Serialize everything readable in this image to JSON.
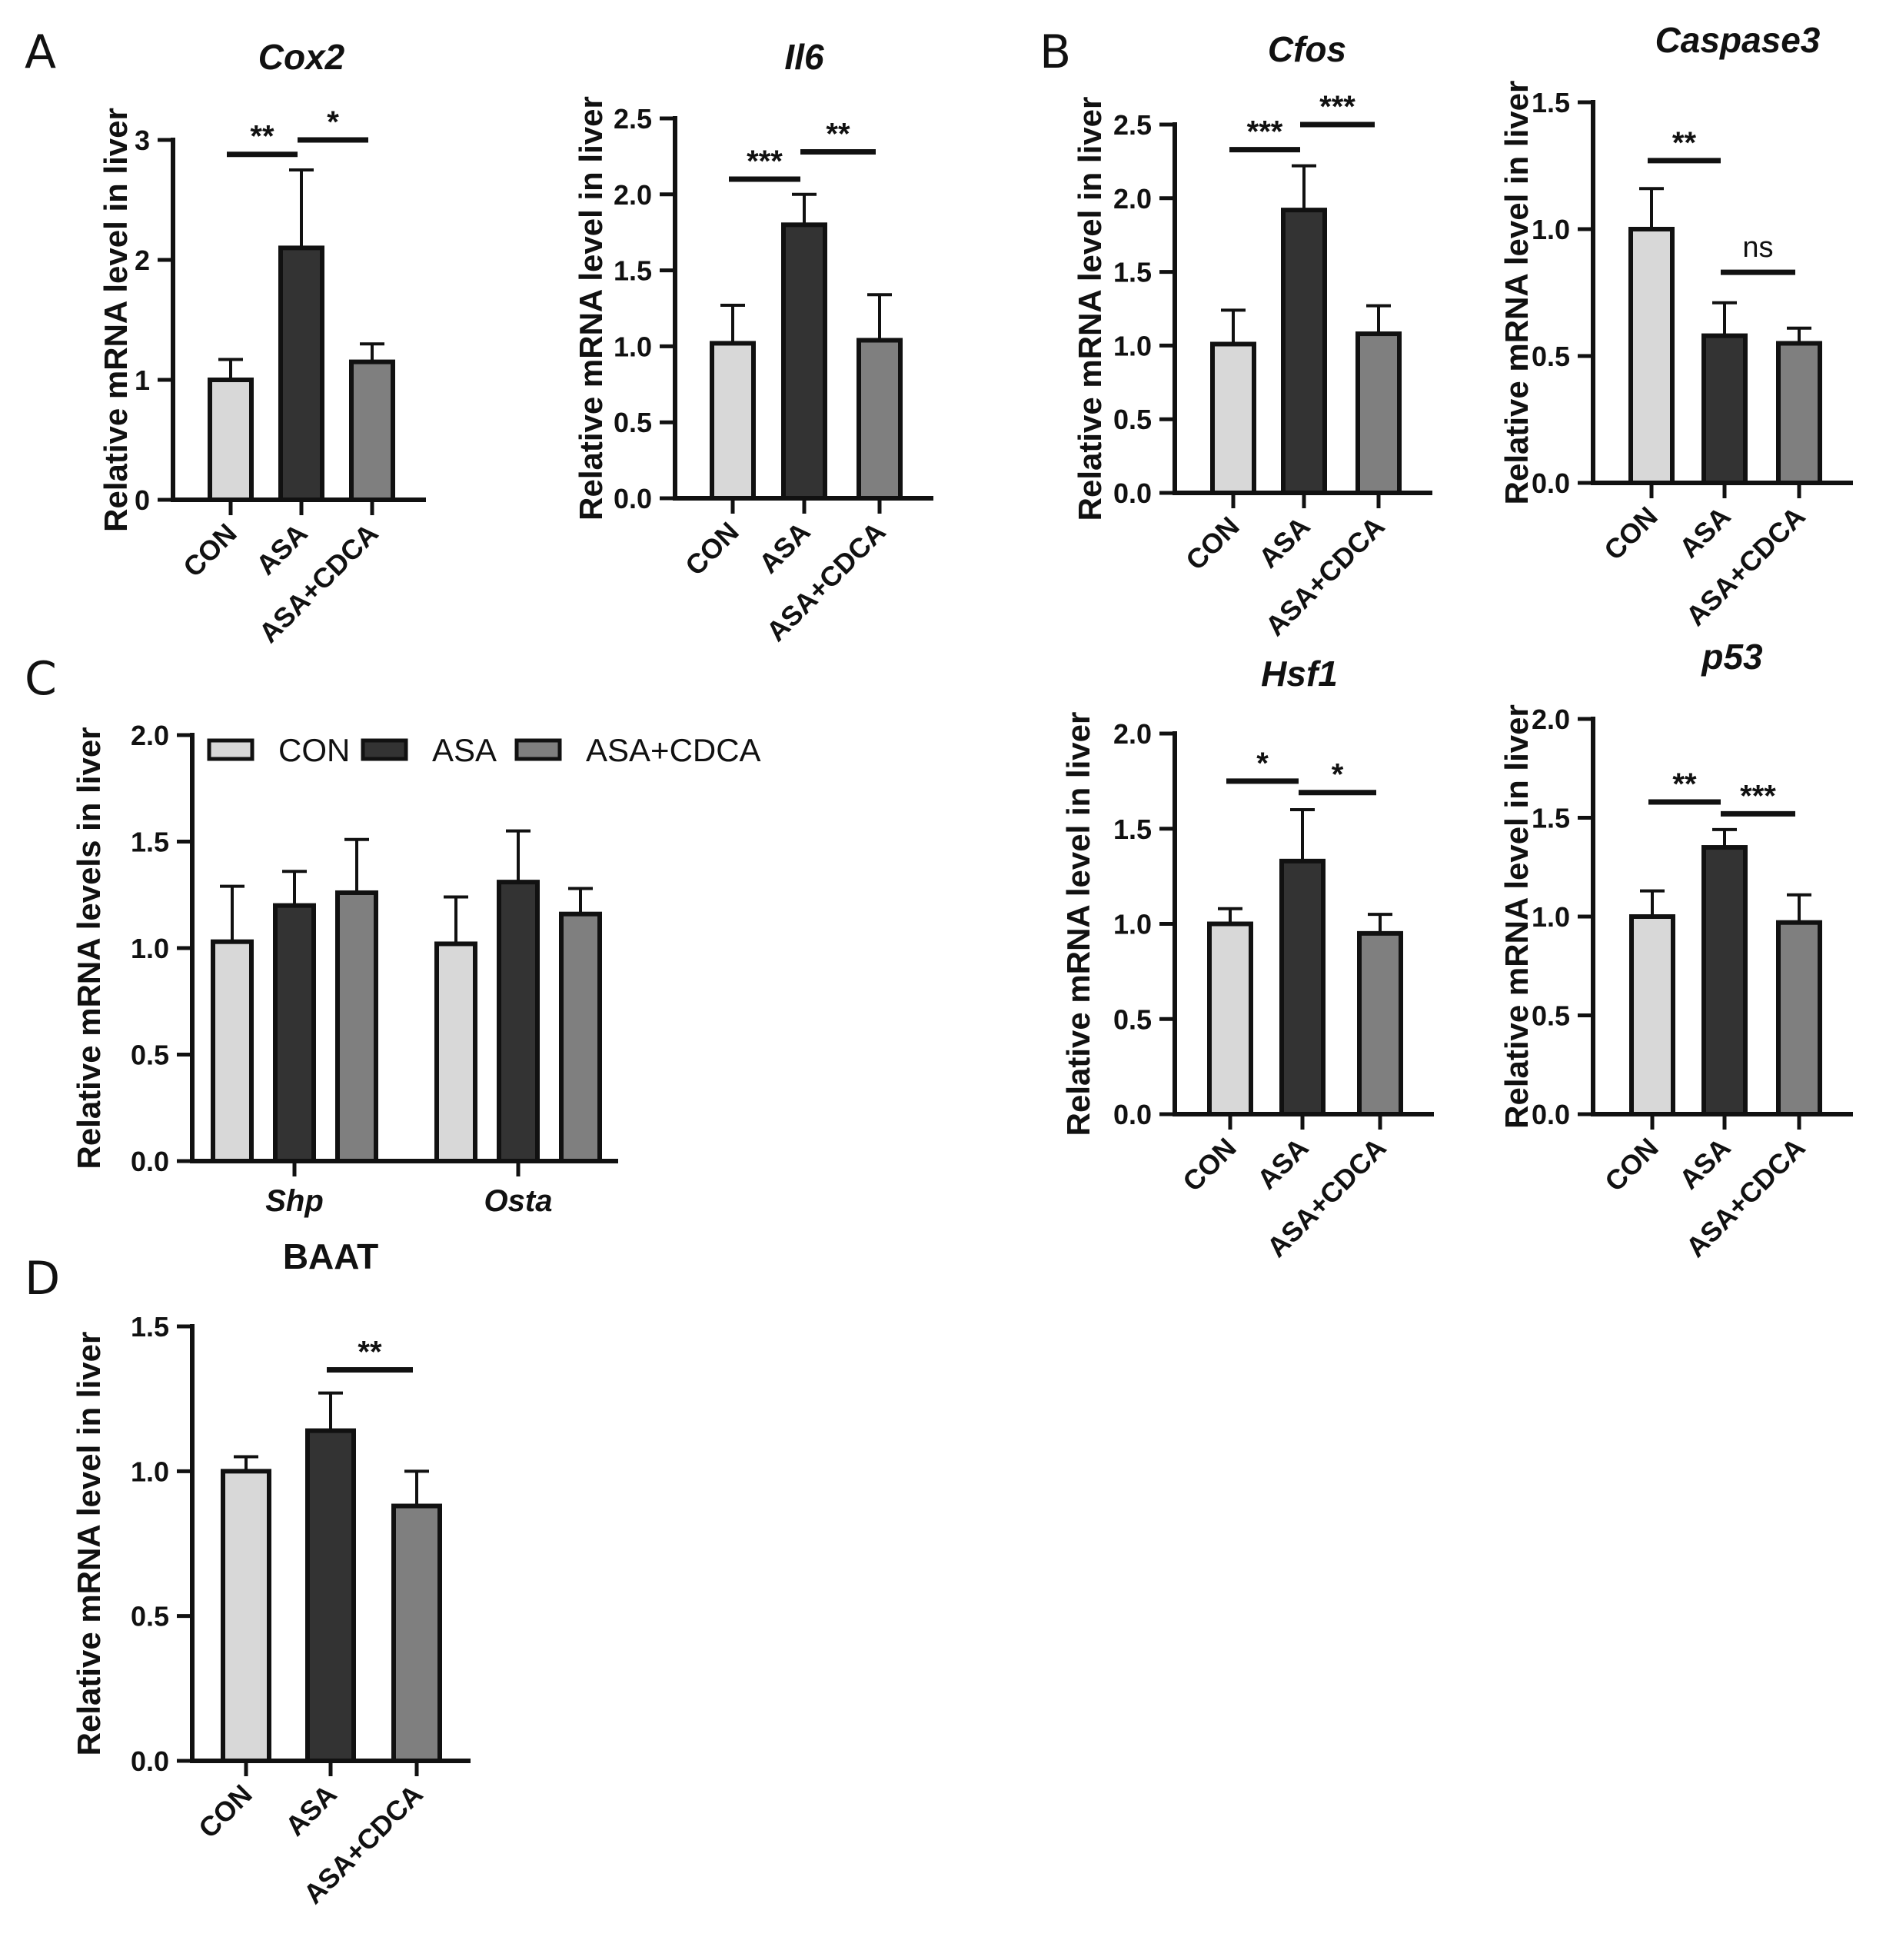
{
  "panel_labels": [
    "A",
    "B",
    "C",
    "D"
  ],
  "colors": {
    "CON": "#d8d8d8",
    "ASA": "#333333",
    "ASA+CDCA": "#7f7f7f",
    "axis": "#111111"
  },
  "chart_data": [
    {
      "id": "cox2",
      "panel": "A",
      "type": "bar",
      "title": "Cox2",
      "title_italic": true,
      "ylabel": "Relative mRNA level in liver",
      "categories": [
        "CON",
        "ASA",
        "ASA+CDCA"
      ],
      "values": [
        1.0,
        2.1,
        1.15
      ],
      "errors": [
        0.17,
        0.65,
        0.15
      ],
      "ylim": [
        0,
        3
      ],
      "yticks": [
        0,
        1,
        2,
        3
      ],
      "yticklabels": [
        "0",
        "1",
        "2",
        "3"
      ],
      "significance": [
        {
          "from": 0,
          "to": 1,
          "label": "**",
          "y": 2.88
        },
        {
          "from": 1,
          "to": 2,
          "label": "*",
          "y": 3.0
        }
      ]
    },
    {
      "id": "il6",
      "panel": "A",
      "type": "bar",
      "title": "Il6",
      "title_italic": true,
      "ylabel": "Relative mRNA level in liver",
      "categories": [
        "CON",
        "ASA",
        "ASA+CDCA"
      ],
      "values": [
        1.02,
        1.8,
        1.04
      ],
      "errors": [
        0.25,
        0.2,
        0.3
      ],
      "ylim": [
        0,
        2.5
      ],
      "yticks": [
        0,
        0.5,
        1.0,
        1.5,
        2.0,
        2.5
      ],
      "yticklabels": [
        "0.0",
        "0.5",
        "1.0",
        "1.5",
        "2.0",
        "2.5"
      ],
      "significance": [
        {
          "from": 0,
          "to": 1,
          "label": "***",
          "y": 2.1
        },
        {
          "from": 1,
          "to": 2,
          "label": "**",
          "y": 2.28
        }
      ]
    },
    {
      "id": "cfos",
      "panel": "B",
      "type": "bar",
      "title": "Cfos",
      "title_italic": true,
      "ylabel": "Relative mRNA level in liver",
      "categories": [
        "CON",
        "ASA",
        "ASA+CDCA"
      ],
      "values": [
        1.01,
        1.92,
        1.08
      ],
      "errors": [
        0.23,
        0.3,
        0.19
      ],
      "ylim": [
        0,
        2.5
      ],
      "yticks": [
        0,
        0.5,
        1.0,
        1.5,
        2.0,
        2.5
      ],
      "yticklabels": [
        "0.0",
        "0.5",
        "1.0",
        "1.5",
        "2.0",
        "2.5"
      ],
      "significance": [
        {
          "from": 0,
          "to": 1,
          "label": "***",
          "y": 2.33
        },
        {
          "from": 1,
          "to": 2,
          "label": "***",
          "y": 2.5
        }
      ]
    },
    {
      "id": "caspase3",
      "panel": "B",
      "type": "bar",
      "title": "Caspase3",
      "title_italic": true,
      "ylabel": "Relative mRNA level in liver",
      "categories": [
        "CON",
        "ASA",
        "ASA+CDCA"
      ],
      "values": [
        1.0,
        0.58,
        0.55
      ],
      "errors": [
        0.16,
        0.13,
        0.06
      ],
      "ylim": [
        0,
        1.5
      ],
      "yticks": [
        0,
        0.5,
        1.0,
        1.5
      ],
      "yticklabels": [
        "0.0",
        "0.5",
        "1.0",
        "1.5"
      ],
      "significance": [
        {
          "from": 0,
          "to": 1,
          "label": "**",
          "y": 1.27
        },
        {
          "from": 1,
          "to": 2,
          "label": "ns",
          "y": 0.83
        }
      ]
    },
    {
      "id": "hsf1",
      "panel": "B",
      "type": "bar",
      "title": "Hsf1",
      "title_italic": true,
      "ylabel": "Relative mRNA level in liver",
      "categories": [
        "CON",
        "ASA",
        "ASA+CDCA"
      ],
      "values": [
        1.0,
        1.33,
        0.95
      ],
      "errors": [
        0.08,
        0.27,
        0.1
      ],
      "ylim": [
        0,
        2.0
      ],
      "yticks": [
        0,
        0.5,
        1.0,
        1.5,
        2.0
      ],
      "yticklabels": [
        "0.0",
        "0.5",
        "1.0",
        "1.5",
        "2.0"
      ],
      "significance": [
        {
          "from": 0,
          "to": 1,
          "label": "*",
          "y": 1.75
        },
        {
          "from": 1,
          "to": 2,
          "label": "*",
          "y": 1.69
        }
      ]
    },
    {
      "id": "p53",
      "panel": "B",
      "type": "bar",
      "title": "p53",
      "title_italic": true,
      "ylabel": "Relative mRNA level in liver",
      "categories": [
        "CON",
        "ASA",
        "ASA+CDCA"
      ],
      "values": [
        1.0,
        1.35,
        0.97
      ],
      "errors": [
        0.13,
        0.09,
        0.14
      ],
      "ylim": [
        0,
        2.0
      ],
      "yticks": [
        0,
        0.5,
        1.0,
        1.5,
        2.0
      ],
      "yticklabels": [
        "0.0",
        "0.5",
        "1.0",
        "1.5",
        "2.0"
      ],
      "significance": [
        {
          "from": 0,
          "to": 1,
          "label": "**",
          "y": 1.58
        },
        {
          "from": 1,
          "to": 2,
          "label": "***",
          "y": 1.52
        }
      ]
    },
    {
      "id": "shp_osta",
      "panel": "C",
      "type": "bar",
      "title": "",
      "title_italic": false,
      "ylabel": "Relative mRNA levels in liver",
      "groups": [
        "Shp",
        "Osta"
      ],
      "series": [
        {
          "name": "CON",
          "values": [
            1.03,
            1.02
          ],
          "errors": [
            0.26,
            0.22
          ]
        },
        {
          "name": "ASA",
          "values": [
            1.2,
            1.31
          ],
          "errors": [
            0.16,
            0.24
          ]
        },
        {
          "name": "ASA+CDCA",
          "values": [
            1.26,
            1.16
          ],
          "errors": [
            0.25,
            0.12
          ]
        }
      ],
      "ylim": [
        0,
        2.0
      ],
      "yticks": [
        0,
        0.5,
        1.0,
        1.5,
        2.0
      ],
      "yticklabels": [
        "0.0",
        "0.5",
        "1.0",
        "1.5",
        "2.0"
      ],
      "legend": [
        "CON",
        "ASA",
        "ASA+CDCA"
      ],
      "legend_position": "top-left"
    },
    {
      "id": "baat",
      "panel": "D",
      "type": "bar",
      "title": "BAAT",
      "title_italic": false,
      "ylabel": "Relative mRNA level in liver",
      "categories": [
        "CON",
        "ASA",
        "ASA+CDCA"
      ],
      "values": [
        1.0,
        1.14,
        0.88
      ],
      "errors": [
        0.05,
        0.13,
        0.12
      ],
      "ylim": [
        0,
        1.5
      ],
      "yticks": [
        0,
        0.5,
        1.0,
        1.5
      ],
      "yticklabels": [
        "0.0",
        "0.5",
        "1.0",
        "1.5"
      ],
      "significance": [
        {
          "from": 1,
          "to": 2,
          "label": "**",
          "y": 1.35
        }
      ]
    }
  ]
}
